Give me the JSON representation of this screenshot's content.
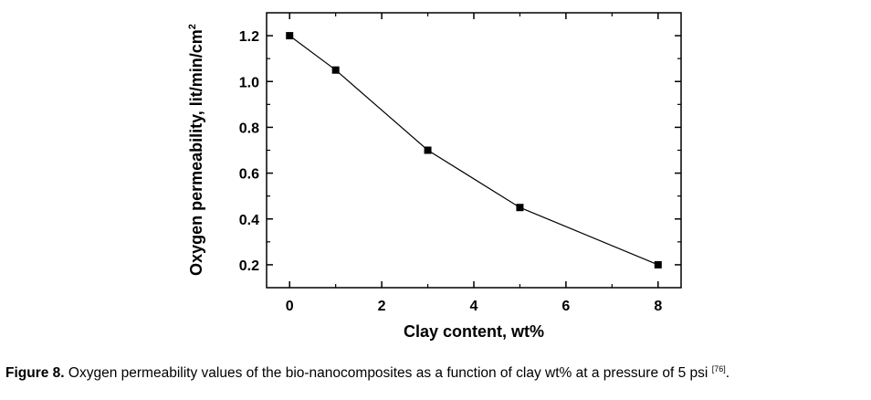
{
  "chart_data": {
    "type": "line",
    "x": [
      0,
      1,
      3,
      5,
      8
    ],
    "values": [
      1.2,
      1.05,
      0.7,
      0.45,
      0.2
    ],
    "xlabel": "Clay content, wt%",
    "ylabel": "Oxygen permeability, lit/min/cm",
    "ylabel_superscript": "2",
    "xlim": [
      -0.5,
      8.5
    ],
    "ylim": [
      0.1,
      1.3
    ],
    "x_ticks": [
      "0",
      "2",
      "4",
      "6",
      "8"
    ],
    "y_ticks": [
      "0.2",
      "0.4",
      "0.6",
      "0.8",
      "1.0",
      "1.2"
    ],
    "marker": "square",
    "grid": false,
    "legend": "none"
  },
  "caption": {
    "label": "Figure 8.",
    "text": " Oxygen permeability values of the bio-nanocomposites as a function of clay wt% at a pressure of 5 psi ",
    "ref": "[76]",
    "end": "."
  }
}
